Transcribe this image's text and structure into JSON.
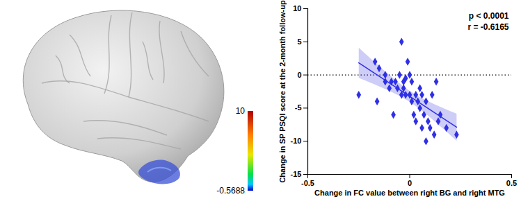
{
  "chart_data": [
    {
      "type": "brain_map",
      "colorbar": {
        "range": [
          -0.5688,
          10
        ],
        "ticks": [
          10,
          -0.5688
        ]
      }
    },
    {
      "type": "scatter",
      "x_label": "Change in FC value between right BG and right MTG",
      "y_label": "Change in SP PSQI score at the 2-month follow-up",
      "annotations": [
        "p < 0.0001",
        "r = -0.6165"
      ],
      "marker": "diamond",
      "color": "#2f2fe6",
      "x": [
        -0.25,
        -0.17,
        -0.15,
        -0.16,
        -0.12,
        -0.12,
        -0.1,
        -0.09,
        -0.07,
        -0.06,
        -0.05,
        -0.04,
        -0.03,
        -0.03,
        -0.02,
        -0.04,
        -0.01,
        0.0,
        0.01,
        0.01,
        0.02,
        0.03,
        0.03,
        0.04,
        0.05,
        0.05,
        0.06,
        0.06,
        0.07,
        0.08,
        0.08,
        0.09,
        0.1,
        0.11,
        0.12,
        0.13,
        0.14,
        0.15,
        0.18,
        0.23,
        -0.08,
        0.0,
        -0.02
      ],
      "values": [
        -3,
        2,
        1,
        -4,
        0,
        -1,
        -2,
        -1,
        -1,
        -2,
        0,
        -3,
        -1,
        -2,
        -3,
        5,
        2,
        -3,
        -1,
        -4,
        -6,
        -7,
        -3,
        -4,
        -2,
        -5,
        -3,
        -8,
        -6,
        -10,
        -4,
        -7,
        -8,
        -3,
        -9,
        -1,
        -7,
        -6,
        -8,
        -9,
        -6,
        0,
        -0.5
      ],
      "reference_y": 0,
      "xlim": [
        -0.5,
        0.5
      ],
      "xticks": [
        -0.5,
        0,
        0.5
      ],
      "ylim": [
        -15,
        10
      ],
      "yticks": [
        -15,
        -10,
        -5,
        0,
        5,
        10
      ]
    }
  ]
}
